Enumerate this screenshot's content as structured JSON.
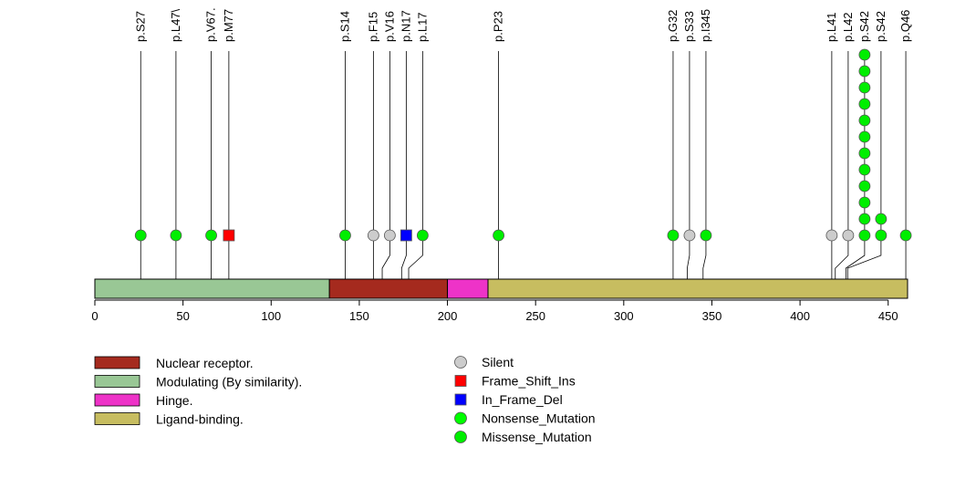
{
  "chart_data": {
    "type": "lollipop",
    "protein_length": 461,
    "x_ticks": [
      0,
      50,
      100,
      150,
      200,
      250,
      300,
      350,
      400,
      450
    ],
    "x_tick_labels": [
      "0",
      "50",
      "100",
      "150",
      "200",
      "250",
      "300",
      "350",
      "400",
      "450"
    ],
    "domains": [
      {
        "name": "Nuclear receptor.",
        "start": 134,
        "end": 200,
        "color": "#a52a1e"
      },
      {
        "name": "Modulating (By similarity).",
        "start": 1,
        "end": 133,
        "color": "#99c795"
      },
      {
        "name": "Hinge.",
        "start": 201,
        "end": 223,
        "color": "#ee33c8"
      },
      {
        "name": "Ligand-binding.",
        "start": 224,
        "end": 461,
        "color": "#c7bd60"
      }
    ],
    "mutation_types": [
      {
        "name": "Silent",
        "color": "#cccccc",
        "shape": "circle"
      },
      {
        "name": "Frame_Shift_Ins",
        "color": "#ff0000",
        "shape": "square"
      },
      {
        "name": "In_Frame_Del",
        "color": "#0000ff",
        "shape": "square"
      },
      {
        "name": "Nonsense_Mutation",
        "color": "#00ff00",
        "shape": "circle"
      },
      {
        "name": "Missense_Mutation",
        "color": "#00ee00",
        "shape": "circle"
      }
    ],
    "mutations": [
      {
        "label": "p.S27",
        "position": 26,
        "count": 1,
        "type": "Missense_Mutation"
      },
      {
        "label": "p.L47\\",
        "position": 46,
        "count": 1,
        "type": "Missense_Mutation"
      },
      {
        "label": "p.V67.",
        "position": 66,
        "count": 1,
        "type": "Missense_Mutation"
      },
      {
        "label": "p.M77",
        "position": 76,
        "count": 1,
        "type": "Frame_Shift_Ins"
      },
      {
        "label": "p.S14",
        "position": 142,
        "count": 1,
        "type": "Missense_Mutation"
      },
      {
        "label": "p.F15",
        "position": 158,
        "count": 1,
        "type": "Silent"
      },
      {
        "label": "p.V16",
        "position": 163,
        "count": 1,
        "type": "Silent"
      },
      {
        "label": "p.N17",
        "position": 174,
        "count": 1,
        "type": "In_Frame_Del"
      },
      {
        "label": "p.L17",
        "position": 178,
        "count": 1,
        "type": "Missense_Mutation"
      },
      {
        "label": "p.P23",
        "position": 229,
        "count": 1,
        "type": "Missense_Mutation"
      },
      {
        "label": "p.G32",
        "position": 328,
        "count": 1,
        "type": "Missense_Mutation"
      },
      {
        "label": "p.S33",
        "position": 336,
        "count": 1,
        "type": "Silent"
      },
      {
        "label": "p.I345",
        "position": 345,
        "count": 1,
        "type": "Missense_Mutation"
      },
      {
        "label": "p.L41",
        "position": 418,
        "count": 1,
        "type": "Silent"
      },
      {
        "label": "p.L42",
        "position": 420,
        "count": 1,
        "type": "Silent"
      },
      {
        "label": "p.S42",
        "position": 426,
        "count": 12,
        "type": "Missense_Mutation"
      },
      {
        "label": "p.S42",
        "position": 427,
        "count": 2,
        "type": "Missense_Mutation"
      },
      {
        "label": "p.Q46",
        "position": 460,
        "count": 1,
        "type": "Missense_Mutation"
      }
    ]
  }
}
